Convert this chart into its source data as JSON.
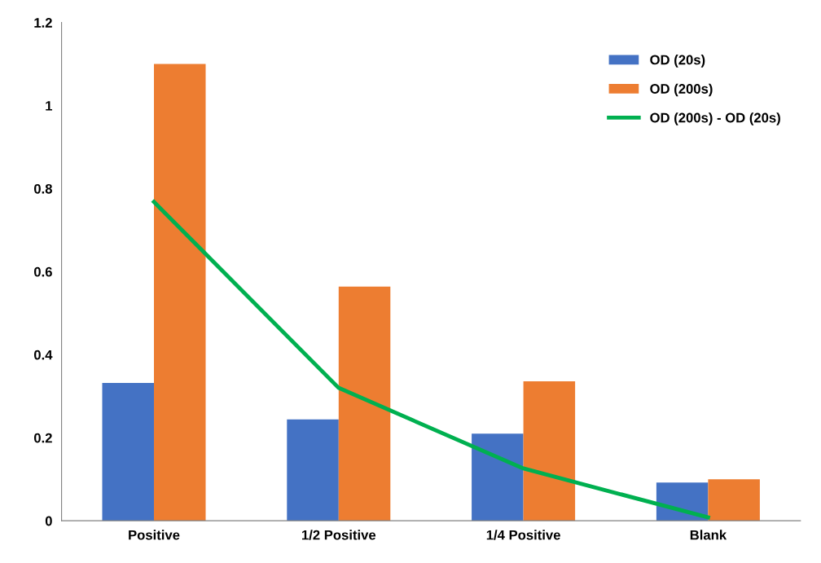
{
  "chart_data": {
    "type": "bar",
    "categories": [
      "Positive",
      "1/2 Positive",
      "1/4 Positive",
      "Blank"
    ],
    "series": [
      {
        "name": "OD (20s)",
        "color": "#4472c4",
        "values": [
          0.332,
          0.244,
          0.21,
          0.092
        ]
      },
      {
        "name": "OD (200s)",
        "color": "#ed7d31",
        "values": [
          1.1,
          0.564,
          0.336,
          0.1
        ]
      },
      {
        "name": "OD (200s) - OD (20s)",
        "color": "#00b050",
        "type": "line",
        "values": [
          0.768,
          0.32,
          0.126,
          0.008
        ]
      }
    ],
    "ylim": [
      0,
      1.2
    ],
    "yticks": [
      0,
      0.2,
      0.4,
      0.6,
      0.8,
      1,
      1.2
    ],
    "grid": false,
    "legend": "top right",
    "marker": "none",
    "line_style": "solid"
  }
}
